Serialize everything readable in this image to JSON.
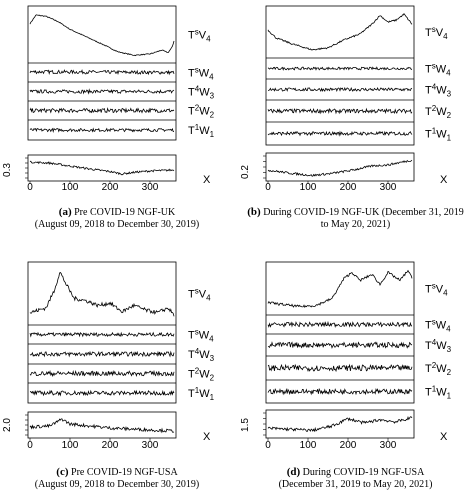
{
  "panels": [
    {
      "id": "a",
      "caption_letter": "(a)",
      "caption_line1": "Pre COVID-19 NGF-UK",
      "caption_line2": "(August 09, 2018 to December 30, 2019)",
      "labels": [
        "T^sV_4",
        "T^sW_4",
        "T^4W_3",
        "T^2W_2",
        "T^1W_1"
      ],
      "x_ticks": [
        0,
        100,
        200,
        300
      ],
      "x_axis_label": "X",
      "y_tick": "0.3"
    },
    {
      "id": "b",
      "caption_letter": "(b)",
      "caption_line1": "During COVID-19 NGF-UK (December 31, 2019",
      "caption_line2": "to May 20, 2021)",
      "labels": [
        "T^sV_4",
        "T^sW_4",
        "T^4W_3",
        "T^2W_2",
        "T^1W_1"
      ],
      "x_ticks": [
        0,
        100,
        200,
        300
      ],
      "x_axis_label": "X",
      "y_tick": "0.2"
    },
    {
      "id": "c",
      "caption_letter": "(c)",
      "caption_line1": "Pre COVID-19 NGF-USA",
      "caption_line2": "(August 09, 2018 to December 30, 2019)",
      "labels": [
        "T^sV_4",
        "T^sW_4",
        "T^4W_3",
        "T^2W_2",
        "T^1W_1"
      ],
      "x_ticks": [
        0,
        100,
        200,
        300
      ],
      "x_axis_label": "X",
      "y_tick": "2.0"
    },
    {
      "id": "d",
      "caption_letter": "(d)",
      "caption_line1": "During COVID-19 NGF-USA",
      "caption_line2": "(December 31, 2019 to May 20, 2021)",
      "labels": [
        "T^sV_4",
        "T^sW_4",
        "T^4W_3",
        "T^2W_2",
        "T^1W_1"
      ],
      "x_ticks": [
        0,
        100,
        200,
        300
      ],
      "x_axis_label": "X",
      "y_tick": "1.5"
    }
  ],
  "chart_data": [
    {
      "type": "line",
      "panel": "a",
      "x_range": [
        0,
        360
      ],
      "series": [
        {
          "key": "V4",
          "shape": [
            [
              0,
              0.75
            ],
            [
              15,
              0.95
            ],
            [
              40,
              0.92
            ],
            [
              70,
              0.8
            ],
            [
              100,
              0.62
            ],
            [
              140,
              0.45
            ],
            [
              180,
              0.28
            ],
            [
              220,
              0.1
            ],
            [
              260,
              0.02
            ],
            [
              300,
              0.05
            ],
            [
              330,
              0.14
            ],
            [
              345,
              0.08
            ],
            [
              355,
              0.2
            ],
            [
              360,
              0.35
            ]
          ],
          "noise": 0.01
        },
        {
          "key": "W4",
          "shape": [
            [
              0,
              0.55
            ],
            [
              360,
              0.5
            ]
          ],
          "noise": 0.12
        },
        {
          "key": "W3",
          "shape": [
            [
              0,
              0.5
            ],
            [
              360,
              0.5
            ]
          ],
          "noise": 0.12
        },
        {
          "key": "W2",
          "shape": [
            [
              0,
              0.5
            ],
            [
              360,
              0.5
            ]
          ],
          "noise": 0.14
        },
        {
          "key": "W1",
          "shape": [
            [
              0,
              0.5
            ],
            [
              360,
              0.5
            ]
          ],
          "noise": 0.1
        },
        {
          "key": "X",
          "shape": [
            [
              0,
              0.8
            ],
            [
              50,
              0.75
            ],
            [
              100,
              0.6
            ],
            [
              150,
              0.45
            ],
            [
              200,
              0.32
            ],
            [
              230,
              0.2
            ],
            [
              260,
              0.28
            ],
            [
              300,
              0.35
            ],
            [
              340,
              0.38
            ],
            [
              360,
              0.4
            ]
          ],
          "noise": 0.05
        }
      ]
    },
    {
      "type": "line",
      "panel": "b",
      "x_range": [
        0,
        360
      ],
      "series": [
        {
          "key": "V4",
          "shape": [
            [
              0,
              0.55
            ],
            [
              20,
              0.35
            ],
            [
              60,
              0.2
            ],
            [
              110,
              0.05
            ],
            [
              150,
              0.1
            ],
            [
              190,
              0.3
            ],
            [
              230,
              0.45
            ],
            [
              260,
              0.7
            ],
            [
              280,
              0.92
            ],
            [
              300,
              0.75
            ],
            [
              320,
              0.8
            ],
            [
              340,
              0.95
            ],
            [
              360,
              0.7
            ]
          ],
          "noise": 0.02
        },
        {
          "key": "W4",
          "shape": [
            [
              0,
              0.5
            ],
            [
              360,
              0.5
            ]
          ],
          "noise": 0.08
        },
        {
          "key": "W3",
          "shape": [
            [
              0,
              0.5
            ],
            [
              360,
              0.5
            ]
          ],
          "noise": 0.1
        },
        {
          "key": "W2",
          "shape": [
            [
              0,
              0.5
            ],
            [
              360,
              0.5
            ]
          ],
          "noise": 0.12
        },
        {
          "key": "W1",
          "shape": [
            [
              0,
              0.5
            ],
            [
              360,
              0.5
            ]
          ],
          "noise": 0.1
        },
        {
          "key": "X",
          "shape": [
            [
              0,
              0.35
            ],
            [
              60,
              0.2
            ],
            [
              110,
              0.1
            ],
            [
              160,
              0.2
            ],
            [
              210,
              0.35
            ],
            [
              260,
              0.55
            ],
            [
              300,
              0.6
            ],
            [
              340,
              0.75
            ],
            [
              360,
              0.82
            ]
          ],
          "noise": 0.05
        }
      ]
    },
    {
      "type": "line",
      "panel": "c",
      "x_range": [
        0,
        360
      ],
      "series": [
        {
          "key": "V4",
          "shape": [
            [
              0,
              0.1
            ],
            [
              40,
              0.2
            ],
            [
              60,
              0.55
            ],
            [
              75,
              0.95
            ],
            [
              90,
              0.7
            ],
            [
              110,
              0.4
            ],
            [
              140,
              0.35
            ],
            [
              170,
              0.25
            ],
            [
              200,
              0.3
            ],
            [
              230,
              0.12
            ],
            [
              260,
              0.25
            ],
            [
              290,
              0.15
            ],
            [
              320,
              0.1
            ],
            [
              345,
              0.2
            ],
            [
              360,
              0.05
            ]
          ],
          "noise": 0.04
        },
        {
          "key": "W4",
          "shape": [
            [
              0,
              0.5
            ],
            [
              360,
              0.5
            ]
          ],
          "noise": 0.12
        },
        {
          "key": "W3",
          "shape": [
            [
              0,
              0.5
            ],
            [
              360,
              0.5
            ]
          ],
          "noise": 0.14
        },
        {
          "key": "W2",
          "shape": [
            [
              0,
              0.5
            ],
            [
              360,
              0.5
            ]
          ],
          "noise": 0.16
        },
        {
          "key": "W1",
          "shape": [
            [
              0,
              0.5
            ],
            [
              360,
              0.5
            ]
          ],
          "noise": 0.14
        },
        {
          "key": "X",
          "shape": [
            [
              0,
              0.4
            ],
            [
              50,
              0.45
            ],
            [
              80,
              0.8
            ],
            [
              100,
              0.55
            ],
            [
              150,
              0.45
            ],
            [
              200,
              0.35
            ],
            [
              250,
              0.3
            ],
            [
              300,
              0.25
            ],
            [
              360,
              0.2
            ]
          ],
          "noise": 0.08
        }
      ]
    },
    {
      "type": "line",
      "panel": "d",
      "x_range": [
        0,
        360
      ],
      "series": [
        {
          "key": "V4",
          "shape": [
            [
              0,
              0.15
            ],
            [
              40,
              0.1
            ],
            [
              80,
              0.05
            ],
            [
              120,
              0.08
            ],
            [
              160,
              0.25
            ],
            [
              190,
              0.75
            ],
            [
              210,
              0.9
            ],
            [
              230,
              0.7
            ],
            [
              260,
              0.85
            ],
            [
              280,
              0.6
            ],
            [
              300,
              0.9
            ],
            [
              330,
              0.7
            ],
            [
              350,
              0.95
            ],
            [
              360,
              0.75
            ]
          ],
          "noise": 0.03
        },
        {
          "key": "W4",
          "shape": [
            [
              0,
              0.5
            ],
            [
              360,
              0.5
            ]
          ],
          "noise": 0.15
        },
        {
          "key": "W3",
          "shape": [
            [
              0,
              0.5
            ],
            [
              360,
              0.5
            ]
          ],
          "noise": 0.16
        },
        {
          "key": "W2",
          "shape": [
            [
              0,
              0.5
            ],
            [
              360,
              0.5
            ]
          ],
          "noise": 0.16
        },
        {
          "key": "W1",
          "shape": [
            [
              0,
              0.5
            ],
            [
              360,
              0.5
            ]
          ],
          "noise": 0.14
        },
        {
          "key": "X",
          "shape": [
            [
              0,
              0.3
            ],
            [
              60,
              0.25
            ],
            [
              110,
              0.2
            ],
            [
              160,
              0.4
            ],
            [
              200,
              0.75
            ],
            [
              240,
              0.55
            ],
            [
              280,
              0.7
            ],
            [
              320,
              0.6
            ],
            [
              360,
              0.8
            ]
          ],
          "noise": 0.07
        }
      ]
    }
  ]
}
